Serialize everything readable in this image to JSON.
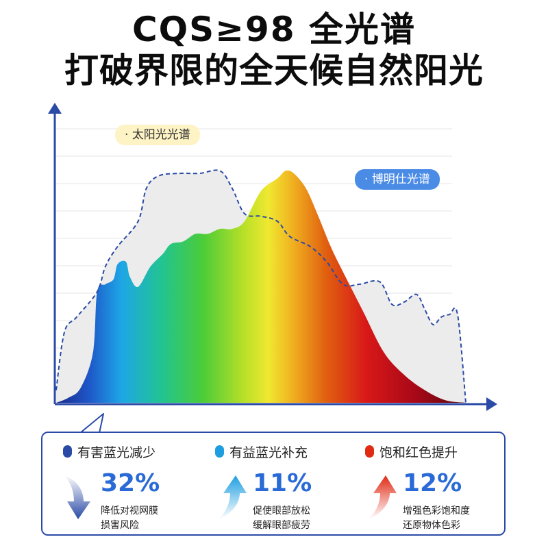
{
  "title_line1": "CQS≥98  全光谱",
  "title_line2": "打破界限的全天候自然阳光",
  "chart_data": {
    "type": "area",
    "series": [
      {
        "name": "太阳光光谱",
        "style": "dashed outline, light gray fill",
        "color": "#2a4aa6",
        "x": [
          0,
          2,
          5,
          10,
          12,
          15,
          20,
          22,
          25,
          30,
          35,
          40,
          43,
          46,
          50,
          54,
          57,
          62,
          66,
          70,
          74,
          79,
          82,
          85,
          88,
          90,
          92,
          94,
          96,
          98,
          100
        ],
        "y": [
          5,
          28,
          34,
          44,
          54,
          62,
          72,
          85,
          90,
          91,
          91,
          92,
          85,
          75,
          74,
          72,
          66,
          62,
          56,
          47,
          47,
          48,
          39,
          40,
          43,
          37,
          31,
          34,
          35,
          35,
          0
        ]
      },
      {
        "name": "博明仕光谱",
        "style": "solid rainbow gradient fill",
        "x": [
          0,
          3,
          6,
          9,
          10,
          12,
          14,
          15,
          17,
          18,
          20,
          23,
          26,
          28,
          31,
          34,
          37,
          40,
          43,
          46,
          50,
          54,
          56,
          58,
          61,
          64,
          67,
          70,
          75,
          80,
          85,
          90,
          95,
          100
        ],
        "y": [
          0,
          2,
          6,
          20,
          44,
          47,
          49,
          55,
          56,
          50,
          46,
          54,
          59,
          63,
          64,
          67,
          67,
          69,
          69,
          72,
          84,
          89,
          92,
          91,
          85,
          74,
          62,
          52,
          36,
          20,
          11,
          5,
          1,
          0
        ]
      }
    ],
    "xlim": [
      0,
      100
    ],
    "ylim": [
      0,
      100
    ],
    "grid": true,
    "legend": "inline callouts"
  },
  "colors": {
    "axis": "#2a4aa6",
    "reduce": "#2a4aa6",
    "supplement": "#1e9ee0",
    "saturation": "#e02a14"
  },
  "stats": [
    {
      "dot_color": "#2a4aa6",
      "label": "有害蓝光减少",
      "value": "32%",
      "value_color": "#2a6ad6",
      "arrow": "down-arrow-icon",
      "desc1": "降低对视网膜",
      "desc2": "损害风险"
    },
    {
      "dot_color": "#1e9ee0",
      "label": "有益蓝光补充",
      "value": "11%",
      "value_color": "#2a6ad6",
      "arrow": "up-arrow-icon",
      "desc1": "促使眼部放松",
      "desc2": "缓解眼部疲劳"
    },
    {
      "dot_color": "#e02a14",
      "label": "饱和红色提升",
      "value": "12%",
      "value_color": "#2a6ad6",
      "arrow": "up-arrow-icon",
      "desc1": "增强色彩饱和度",
      "desc2": "还原物体色彩"
    }
  ]
}
